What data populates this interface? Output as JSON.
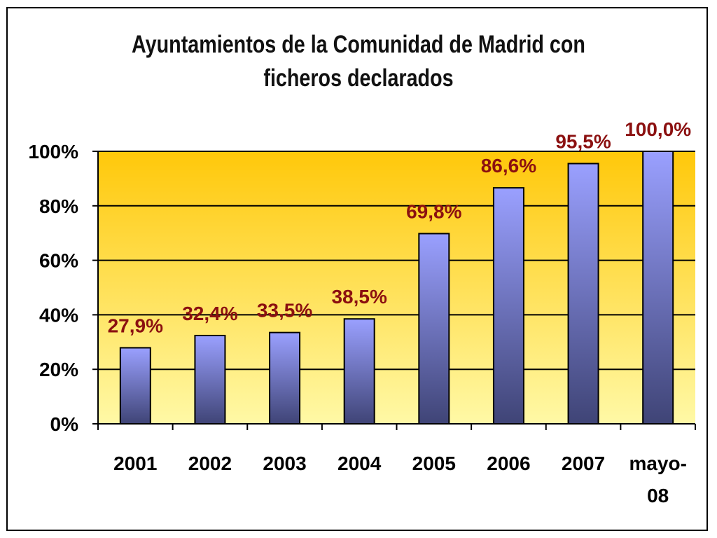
{
  "chart_data": {
    "type": "bar",
    "title": "Ayuntamientos de la Comunidad de Madrid con ficheros declarados",
    "title_lines": [
      "Ayuntamientos de la Comunidad de Madrid con",
      "ficheros declarados"
    ],
    "categories": [
      "2001",
      "2002",
      "2003",
      "2004",
      "2005",
      "2006",
      "2007",
      "mayo-08"
    ],
    "category_label_lines": [
      [
        "2001"
      ],
      [
        "2002"
      ],
      [
        "2003"
      ],
      [
        "2004"
      ],
      [
        "2005"
      ],
      [
        "2006"
      ],
      [
        "2007"
      ],
      [
        "mayo-",
        "08"
      ]
    ],
    "values": [
      27.9,
      32.4,
      33.5,
      38.5,
      69.8,
      86.6,
      95.5,
      100.0
    ],
    "data_labels": [
      "27,9%",
      "32,4%",
      "33,5%",
      "38,5%",
      "69,8%",
      "86,6%",
      "95,5%",
      "100,0%"
    ],
    "ylim": [
      0,
      100
    ],
    "yticks": [
      0,
      20,
      40,
      60,
      80,
      100
    ],
    "ytick_labels": [
      "0%",
      "20%",
      "40%",
      "60%",
      "80%",
      "100%"
    ],
    "xlabel": "",
    "ylabel": "",
    "grid": true,
    "legend": "none"
  },
  "colors": {
    "plot_bg_top": "#FFC80A",
    "plot_bg_bottom": "#FFF9A6",
    "bar_top": "#9AA0FF",
    "bar_bottom": "#3F4476",
    "bar_outline": "#000000",
    "data_label": "#8B1010",
    "gridline": "#000000"
  }
}
